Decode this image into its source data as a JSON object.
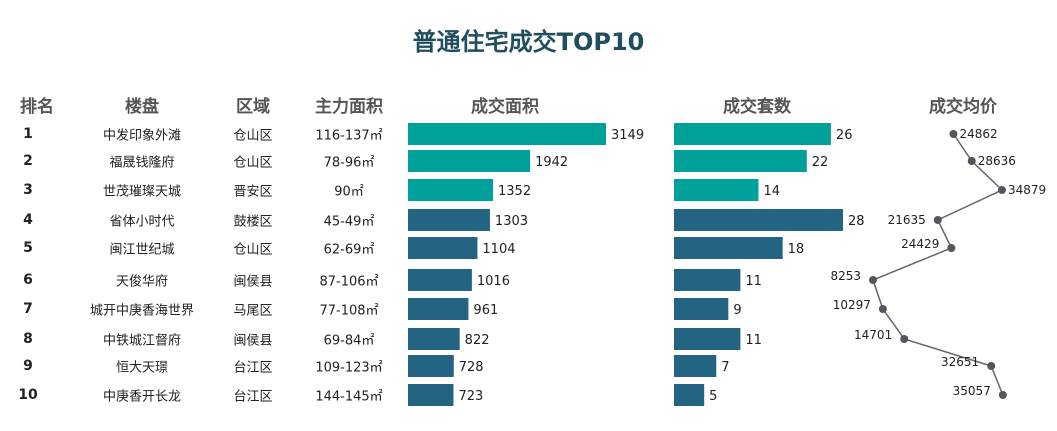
{
  "title": "普通住宅成交TOP10",
  "headers": {
    "rank": "排名",
    "project": "楼盘",
    "district": "区域",
    "size": "主力面积",
    "area": "成交面积",
    "units": "成交套数",
    "price": "成交均价"
  },
  "colors": {
    "top3": "#00a19a",
    "others": "#226482",
    "line": "#666666",
    "dot": "#55555f",
    "title": "#1f4e5f"
  },
  "rows": [
    {
      "rank": "1",
      "project": "中发印象外滩",
      "district": "仓山区",
      "size": "116-137㎡"
    },
    {
      "rank": "2",
      "project": "福晟钱隆府",
      "district": "仓山区",
      "size": "78-96㎡"
    },
    {
      "rank": "3",
      "project": "世茂璀璨天城",
      "district": "晋安区",
      "size": "90㎡"
    },
    {
      "rank": "4",
      "project": "省体小时代",
      "district": "鼓楼区",
      "size": "45-49㎡"
    },
    {
      "rank": "5",
      "project": "闽江世纪城",
      "district": "仓山区",
      "size": "62-69㎡"
    },
    {
      "rank": "6",
      "project": "天俊华府",
      "district": "闽侯县",
      "size": "87-106㎡"
    },
    {
      "rank": "7",
      "project": "城开中庚香海世界",
      "district": "马尾区",
      "size": "77-108㎡"
    },
    {
      "rank": "8",
      "project": "中铁城江督府",
      "district": "闽侯县",
      "size": "69-84㎡"
    },
    {
      "rank": "9",
      "project": "恒大天璟",
      "district": "台江区",
      "size": "109-123㎡"
    },
    {
      "rank": "10",
      "project": "中庚香开长龙",
      "district": "台江区",
      "size": "144-145㎡"
    }
  ],
  "chart_data": [
    {
      "type": "bar",
      "orientation": "horizontal",
      "title": "成交面积",
      "values": [
        3149,
        1942,
        1352,
        1303,
        1104,
        1016,
        961,
        822,
        728,
        723
      ]
    },
    {
      "type": "bar",
      "orientation": "horizontal",
      "title": "成交套数",
      "values": [
        26,
        22,
        14,
        28,
        18,
        11,
        9,
        11,
        7,
        5
      ]
    },
    {
      "type": "line",
      "orientation": "vertical",
      "title": "成交均价",
      "values": [
        24862,
        28636,
        34879,
        21635,
        24429,
        8253,
        10297,
        14701,
        32651,
        35057
      ]
    }
  ]
}
